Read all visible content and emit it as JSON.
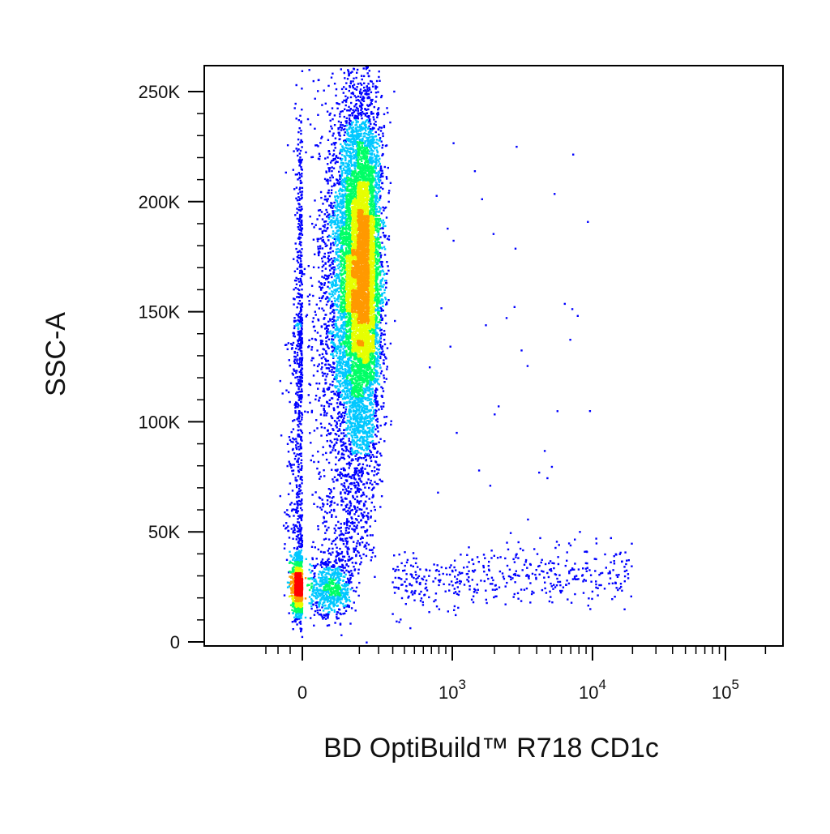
{
  "chart_data": {
    "type": "scatter",
    "subtype": "flow-cytometry-density-dot-plot",
    "title": "",
    "xlabel": "BD OptiBuild™ R718 CD1c",
    "ylabel": "SSC-A",
    "x_scale": "biexponential",
    "x_range": [
      -400,
      300000
    ],
    "x_ticks": [
      {
        "value": 0,
        "label": "0"
      },
      {
        "value": 1000,
        "base": "10",
        "exp": "3"
      },
      {
        "value": 10000,
        "base": "10",
        "exp": "4"
      },
      {
        "value": 100000,
        "base": "10",
        "exp": "5"
      }
    ],
    "y_scale": "linear",
    "y_range": [
      0,
      262144
    ],
    "y_ticks": [
      {
        "value": 0,
        "label": "0"
      },
      {
        "value": 50000,
        "label": "50K"
      },
      {
        "value": 100000,
        "label": "100K"
      },
      {
        "value": 150000,
        "label": "150K"
      },
      {
        "value": 200000,
        "label": "200K"
      },
      {
        "value": 250000,
        "label": "250K"
      }
    ],
    "grid": false,
    "legend": "none",
    "density_colormap": [
      "#0000ff",
      "#00c8ff",
      "#00ff66",
      "#e6ff00",
      "#ff9900",
      "#ff0000"
    ],
    "populations": [
      {
        "name": "",
        "center_x": 100,
        "center_y": 170000,
        "spread_x": 55,
        "spread_y": 38000,
        "events": 9000
      },
      {
        "name": "",
        "center_x": -10,
        "center_y": 25000,
        "spread_x": 35,
        "spread_y": 7000,
        "events": 1800
      },
      {
        "name": "",
        "center_x_range": [
          300,
          20000
        ],
        "center_y": 26000,
        "spread_y": 7000,
        "events": 450
      }
    ]
  }
}
